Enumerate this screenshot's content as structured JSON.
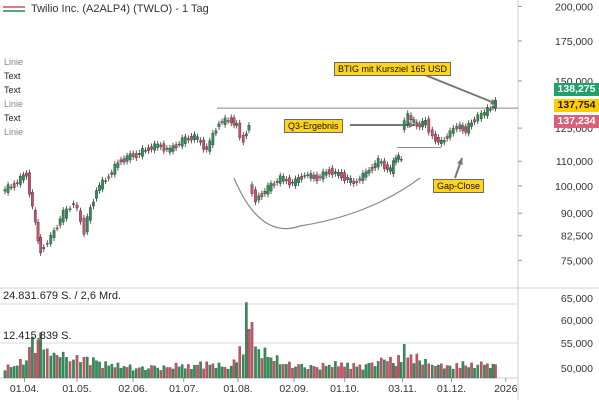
{
  "header": {
    "title": "Twilio Inc. (A2ALP4) (TWLO) - 1 Tag"
  },
  "side_labels": [
    "Linie",
    "Text",
    "Text",
    "Linie",
    "Text",
    "Linie"
  ],
  "price_badges": {
    "top": {
      "value": "138,275",
      "color": "#22a06b"
    },
    "mid": {
      "value": "137,754",
      "color": "#ffcc00"
    },
    "bottom": {
      "value": "137,234",
      "color": "#d9607a"
    }
  },
  "callouts": {
    "target": "BTIG mit Kursziel 165 USD",
    "q3": "Q3-Ergebnis",
    "gap": "Gap-Close"
  },
  "volume_labels": {
    "upper": "24.831.679 S. / 2,6 Mrd.",
    "lower": "12.415.839 S."
  },
  "chart_data": {
    "type": "candlestick",
    "title": "Twilio Inc. (A2ALP4) (TWLO) - 1 Tag",
    "y_scale": "log",
    "price_ylim": [
      69000,
      205000
    ],
    "price_yticks": [
      {
        "value": 200000,
        "label": "200,000"
      },
      {
        "value": 175000,
        "label": "175,000"
      },
      {
        "value": 150000,
        "label": "150,000"
      },
      {
        "value": 125000,
        "label": "125,000"
      },
      {
        "value": 110000,
        "label": "110,000"
      },
      {
        "value": 100000,
        "label": "100,000"
      },
      {
        "value": 90000,
        "label": "90,000"
      },
      {
        "value": 82500,
        "label": "82,500"
      },
      {
        "value": 75000,
        "label": "75,000"
      }
    ],
    "volume_yticks": [
      {
        "value": 65000,
        "label": "65,000"
      },
      {
        "value": 60000,
        "label": "60,000"
      },
      {
        "value": 55000,
        "label": "55,000"
      },
      {
        "value": 50000,
        "label": "50,000"
      }
    ],
    "x_ticks": [
      "01.04.",
      "01.05.",
      "02.06.",
      "01.07.",
      "01.08.",
      "02.09.",
      "01.10.",
      "03.11.",
      "01.12.",
      "2026"
    ],
    "x_domain": [
      "2025-03-18",
      "2026-01-08"
    ],
    "x_tick_dates": [
      "2025-04-01",
      "2025-05-01",
      "2025-06-02",
      "2025-07-01",
      "2025-08-01",
      "2025-09-02",
      "2025-10-01",
      "2025-11-03",
      "2025-12-01",
      "2026-01-01"
    ],
    "series": [
      {
        "date": "2025-03-20",
        "o": 98000,
        "c": 100500
      },
      {
        "date": "2025-03-27",
        "o": 100500,
        "c": 105000
      },
      {
        "date": "2025-04-03",
        "o": 104000,
        "c": 86000
      },
      {
        "date": "2025-04-08",
        "o": 86000,
        "c": 77500
      },
      {
        "date": "2025-04-11",
        "o": 78000,
        "c": 82000
      },
      {
        "date": "2025-04-17",
        "o": 82000,
        "c": 90000
      },
      {
        "date": "2025-04-24",
        "o": 89000,
        "c": 94000
      },
      {
        "date": "2025-04-30",
        "o": 94000,
        "c": 84000
      },
      {
        "date": "2025-05-06",
        "o": 84500,
        "c": 98500
      },
      {
        "date": "2025-05-13",
        "o": 98500,
        "c": 104000
      },
      {
        "date": "2025-05-20",
        "o": 104000,
        "c": 111000
      },
      {
        "date": "2025-05-27",
        "o": 110000,
        "c": 113000
      },
      {
        "date": "2025-06-03",
        "o": 112000,
        "c": 115000
      },
      {
        "date": "2025-06-10",
        "o": 115000,
        "c": 117000
      },
      {
        "date": "2025-06-17",
        "o": 117000,
        "c": 114500
      },
      {
        "date": "2025-06-24",
        "o": 115000,
        "c": 119000
      },
      {
        "date": "2025-07-01",
        "o": 119000,
        "c": 121000
      },
      {
        "date": "2025-07-08",
        "o": 121000,
        "c": 115000
      },
      {
        "date": "2025-07-15",
        "o": 115000,
        "c": 128000
      },
      {
        "date": "2025-07-22",
        "o": 128000,
        "c": 129000
      },
      {
        "date": "2025-07-29",
        "o": 129000,
        "c": 126000
      },
      {
        "date": "2025-08-01",
        "o": 126000,
        "c": 118000
      },
      {
        "date": "2025-08-05",
        "o": 120000,
        "c": 127000
      },
      {
        "date": "2025-08-08",
        "o": 100000,
        "c": 95000
      },
      {
        "date": "2025-08-12",
        "o": 95000,
        "c": 99000
      },
      {
        "date": "2025-08-19",
        "o": 99000,
        "c": 103000
      },
      {
        "date": "2025-08-26",
        "o": 103000,
        "c": 101000
      },
      {
        "date": "2025-09-02",
        "o": 101000,
        "c": 104500
      },
      {
        "date": "2025-09-09",
        "o": 104500,
        "c": 103000
      },
      {
        "date": "2025-09-16",
        "o": 103000,
        "c": 106000
      },
      {
        "date": "2025-09-23",
        "o": 106000,
        "c": 104000
      },
      {
        "date": "2025-09-30",
        "o": 104000,
        "c": 101000
      },
      {
        "date": "2025-10-07",
        "o": 101000,
        "c": 105000
      },
      {
        "date": "2025-10-14",
        "o": 105000,
        "c": 110000
      },
      {
        "date": "2025-10-21",
        "o": 110000,
        "c": 106000
      },
      {
        "date": "2025-10-28",
        "o": 106000,
        "c": 112000
      },
      {
        "date": "2025-10-31",
        "o": 112000,
        "c": 110500
      },
      {
        "date": "2025-11-03",
        "o": 125000,
        "c": 131000
      },
      {
        "date": "2025-11-07",
        "o": 131000,
        "c": 126000
      },
      {
        "date": "2025-11-12",
        "o": 126000,
        "c": 128000
      },
      {
        "date": "2025-11-17",
        "o": 128000,
        "c": 121000
      },
      {
        "date": "2025-11-21",
        "o": 121000,
        "c": 118000
      },
      {
        "date": "2025-11-26",
        "o": 118000,
        "c": 123000
      },
      {
        "date": "2025-12-01",
        "o": 123000,
        "c": 126000
      },
      {
        "date": "2025-12-05",
        "o": 126000,
        "c": 124000
      },
      {
        "date": "2025-12-10",
        "o": 124000,
        "c": 129500
      },
      {
        "date": "2025-12-15",
        "o": 129500,
        "c": 131500
      },
      {
        "date": "2025-12-19",
        "o": 131500,
        "c": 135000
      },
      {
        "date": "2025-12-24",
        "o": 135000,
        "c": 137754
      }
    ],
    "volume_bars_note": "relative volume per week, 0-1 of panel",
    "volume": [
      0.18,
      0.25,
      0.55,
      0.62,
      0.42,
      0.35,
      0.28,
      0.3,
      0.28,
      0.22,
      0.2,
      0.18,
      0.16,
      0.18,
      0.17,
      0.2,
      0.18,
      0.22,
      0.2,
      0.16,
      0.25,
      0.42,
      1.0,
      0.75,
      0.4,
      0.3,
      0.22,
      0.2,
      0.18,
      0.2,
      0.22,
      0.2,
      0.18,
      0.22,
      0.28,
      0.2,
      0.3,
      0.45,
      0.32,
      0.25,
      0.22,
      0.2,
      0.18,
      0.2,
      0.22,
      0.2,
      0.22,
      0.2,
      0.2
    ],
    "annotations": {
      "resistance_level": 135000,
      "gap_level": 116000
    }
  }
}
